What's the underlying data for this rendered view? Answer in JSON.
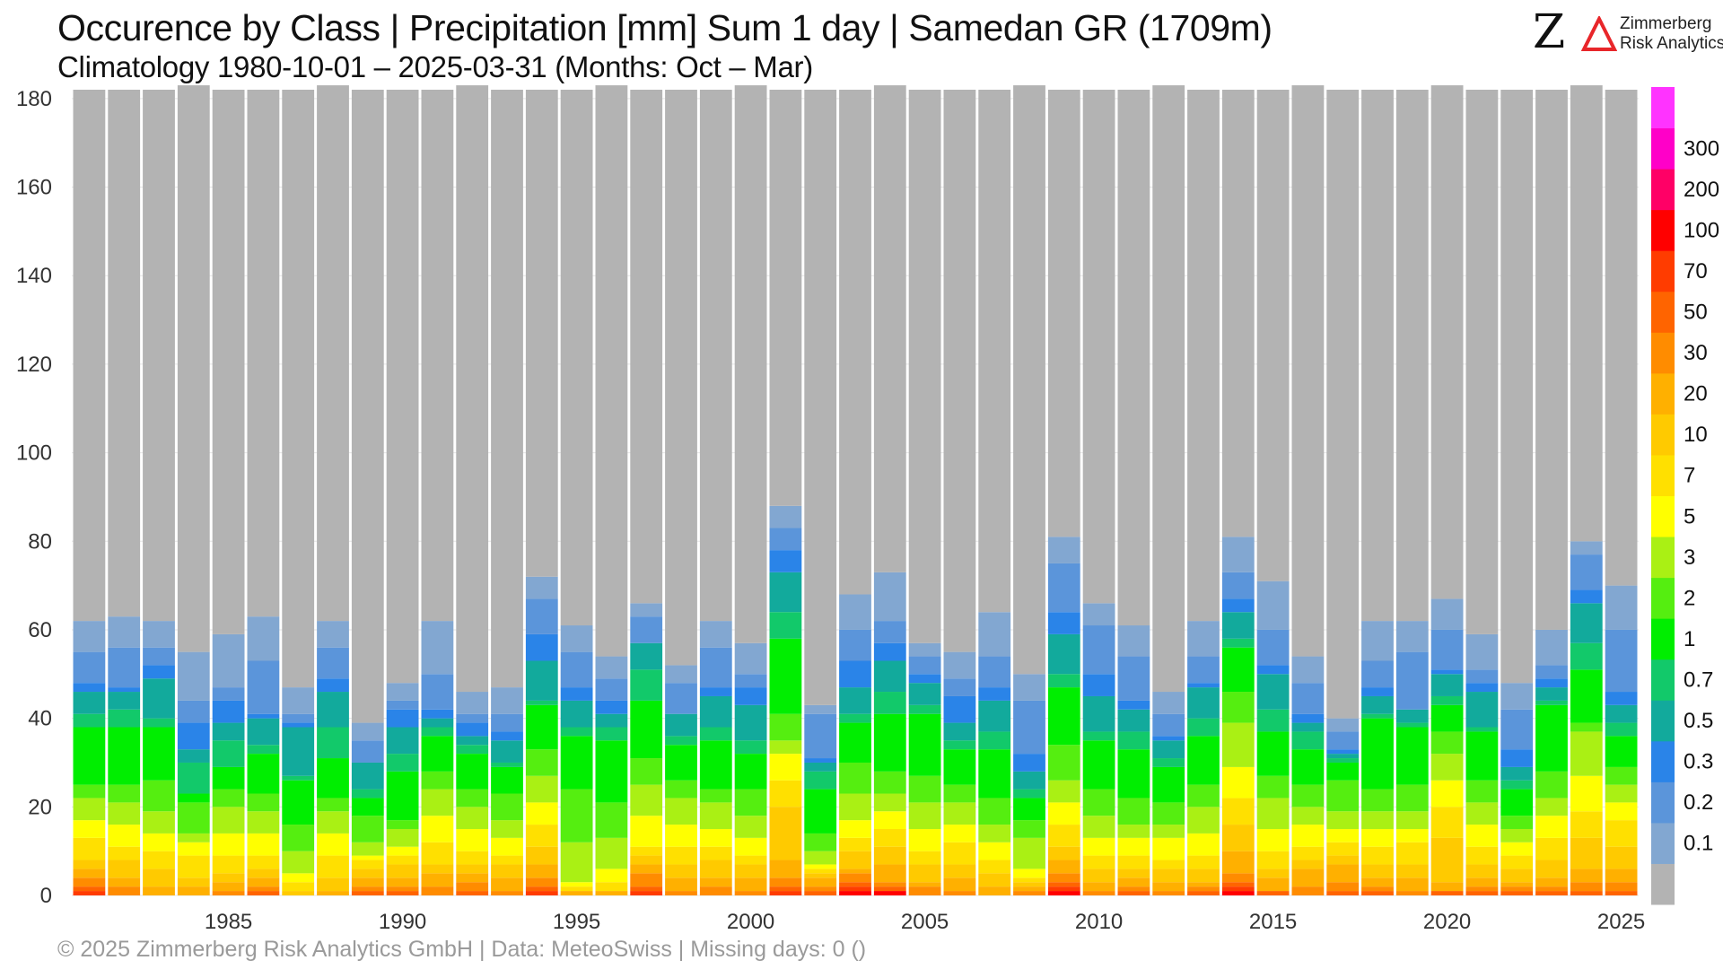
{
  "header": {
    "title": "Occurence by Class | Precipitation [mm] Sum 1 day | Samedan  GR (1709m)",
    "subtitle": "Climatology 1980-10-01 – 2025-03-31 (Months: Oct – Mar)"
  },
  "logo": {
    "mark": "Z",
    "line1": "Zimmerberg",
    "line2": "Risk Analytics",
    "accent_color": "#e8262a"
  },
  "footer": {
    "text": "©  2025 Zimmerberg Risk Analytics GmbH | Data: MeteoSwiss | Missing days: 0 ()"
  },
  "chart_data": {
    "type": "bar",
    "stacked": true,
    "x": [
      1981,
      1982,
      1983,
      1984,
      1985,
      1986,
      1987,
      1988,
      1989,
      1990,
      1991,
      1992,
      1993,
      1994,
      1995,
      1996,
      1997,
      1998,
      1999,
      2000,
      2001,
      2002,
      2003,
      2004,
      2005,
      2006,
      2007,
      2008,
      2009,
      2010,
      2011,
      2012,
      2013,
      2014,
      2015,
      2016,
      2017,
      2018,
      2019,
      2020,
      2021,
      2022,
      2023,
      2024,
      2025
    ],
    "x_ticks": [
      1985,
      1990,
      1995,
      2000,
      2005,
      2010,
      2015,
      2020,
      2025
    ],
    "ylim": [
      0,
      182
    ],
    "y_ticks": [
      0,
      20,
      40,
      60,
      80,
      100,
      120,
      140,
      160,
      180
    ],
    "grid": true,
    "legend_position": "right colorbar",
    "classes": [
      "0.1",
      "0.2",
      "0.3",
      "0.5",
      "0.7",
      "1",
      "2",
      "3",
      "5",
      "7",
      "10",
      "20",
      "30",
      "50",
      "70",
      "100",
      "200",
      "300"
    ],
    "colors": [
      "#b3b3b3",
      "#82a7d1",
      "#5b95da",
      "#2a84e8",
      "#12aa9c",
      "#12c96a",
      "#00ee00",
      "#55ee10",
      "#aaf014",
      "#ffff00",
      "#ffe000",
      "#ffca00",
      "#ffb000",
      "#ff8c00",
      "#ff6400",
      "#ff3c00",
      "#ff0000",
      "#ff0066",
      "#ff00c8",
      "#ff33ff"
    ],
    "totals": [
      182,
      182,
      182,
      183,
      182,
      182,
      182,
      183,
      182,
      182,
      182,
      183,
      182,
      182,
      182,
      183,
      182,
      182,
      182,
      183,
      182,
      182,
      182,
      183,
      182,
      182,
      182,
      183,
      182,
      182,
      182,
      183,
      182,
      182,
      182,
      183,
      182,
      182,
      182,
      183,
      182,
      182,
      182,
      183,
      182
    ],
    "counts": [
      [
        7,
        7,
        2,
        5,
        3,
        13,
        3,
        5,
        4,
        5,
        2,
        2,
        2,
        1,
        1,
        0,
        0,
        0
      ],
      [
        7,
        9,
        1,
        4,
        4,
        13,
        4,
        5,
        5,
        3,
        4,
        2,
        2,
        0,
        0,
        0,
        0,
        0
      ],
      [
        6,
        4,
        3,
        9,
        2,
        12,
        7,
        5,
        4,
        4,
        4,
        2,
        0,
        0,
        0,
        0,
        0,
        0
      ],
      [
        11,
        5,
        6,
        3,
        7,
        2,
        7,
        2,
        3,
        5,
        2,
        2,
        0,
        0,
        0,
        0,
        0,
        0
      ],
      [
        12,
        3,
        5,
        4,
        6,
        5,
        4,
        6,
        5,
        4,
        2,
        2,
        1,
        0,
        0,
        0,
        0,
        0
      ],
      [
        10,
        12,
        1,
        6,
        2,
        9,
        4,
        5,
        5,
        3,
        2,
        2,
        1,
        1,
        0,
        0,
        0,
        0
      ],
      [
        6,
        2,
        1,
        11,
        1,
        10,
        6,
        5,
        2,
        2,
        1,
        0,
        0,
        0,
        0,
        0,
        0,
        0
      ],
      [
        6,
        7,
        3,
        8,
        7,
        9,
        3,
        5,
        5,
        5,
        3,
        1,
        0,
        0,
        0,
        0,
        0,
        0
      ],
      [
        4,
        5,
        0,
        6,
        2,
        4,
        6,
        3,
        1,
        2,
        2,
        2,
        1,
        1,
        0,
        0,
        0,
        0
      ],
      [
        4,
        2,
        4,
        6,
        4,
        11,
        2,
        4,
        2,
        2,
        3,
        2,
        1,
        1,
        0,
        0,
        0,
        0
      ],
      [
        12,
        8,
        2,
        2,
        2,
        8,
        4,
        6,
        6,
        5,
        2,
        3,
        2,
        0,
        0,
        0,
        0,
        0
      ],
      [
        5,
        2,
        3,
        2,
        2,
        8,
        4,
        5,
        5,
        3,
        2,
        2,
        2,
        1,
        0,
        0,
        0,
        0
      ],
      [
        6,
        4,
        2,
        5,
        1,
        6,
        6,
        4,
        4,
        2,
        3,
        3,
        1,
        0,
        0,
        0,
        0,
        0
      ],
      [
        5,
        8,
        6,
        9,
        1,
        10,
        6,
        6,
        5,
        5,
        4,
        3,
        2,
        1,
        1,
        0,
        0,
        0
      ],
      [
        6,
        8,
        3,
        6,
        2,
        12,
        12,
        9,
        1,
        1,
        0,
        1,
        0,
        0,
        0,
        0,
        0,
        0
      ],
      [
        5,
        5,
        3,
        3,
        3,
        14,
        8,
        7,
        3,
        2,
        0,
        1,
        0,
        0,
        0,
        0,
        0,
        0
      ],
      [
        3,
        6,
        0,
        6,
        7,
        13,
        6,
        7,
        7,
        2,
        2,
        2,
        3,
        1,
        1,
        0,
        0,
        0
      ],
      [
        4,
        7,
        0,
        5,
        2,
        8,
        4,
        6,
        5,
        4,
        3,
        3,
        1,
        0,
        0,
        0,
        0,
        0
      ],
      [
        6,
        9,
        2,
        7,
        3,
        11,
        3,
        6,
        4,
        3,
        4,
        2,
        2,
        0,
        0,
        0,
        0,
        0
      ],
      [
        7,
        3,
        4,
        8,
        3,
        8,
        6,
        5,
        4,
        2,
        3,
        3,
        1,
        0,
        0,
        0,
        0,
        0
      ],
      [
        5,
        5,
        5,
        9,
        6,
        17,
        6,
        3,
        6,
        6,
        12,
        4,
        2,
        1,
        1,
        0,
        0,
        0
      ],
      [
        2,
        10,
        1,
        2,
        4,
        10,
        4,
        3,
        1,
        1,
        1,
        2,
        1,
        1,
        0,
        0,
        0,
        0
      ],
      [
        8,
        7,
        6,
        6,
        2,
        9,
        7,
        6,
        4,
        3,
        4,
        1,
        2,
        1,
        1,
        1,
        0,
        0
      ],
      [
        11,
        5,
        4,
        7,
        5,
        13,
        5,
        4,
        4,
        4,
        4,
        4,
        1,
        1,
        0,
        1,
        0,
        0
      ],
      [
        3,
        4,
        2,
        5,
        2,
        14,
        6,
        6,
        5,
        3,
        4,
        1,
        2,
        0,
        0,
        0,
        0,
        0
      ],
      [
        6,
        4,
        6,
        4,
        2,
        8,
        4,
        5,
        4,
        5,
        3,
        3,
        1,
        0,
        0,
        0,
        0,
        0
      ],
      [
        10,
        7,
        3,
        7,
        4,
        11,
        6,
        4,
        4,
        3,
        3,
        2,
        0,
        0,
        0,
        0,
        0,
        0
      ],
      [
        6,
        12,
        4,
        4,
        2,
        5,
        4,
        7,
        2,
        1,
        1,
        1,
        1,
        0,
        0,
        0,
        0,
        0
      ],
      [
        6,
        11,
        5,
        9,
        3,
        13,
        8,
        5,
        5,
        5,
        3,
        3,
        2,
        1,
        1,
        1,
        0,
        0
      ],
      [
        5,
        11,
        5,
        8,
        2,
        11,
        6,
        5,
        4,
        3,
        3,
        2,
        1,
        0,
        0,
        0,
        0,
        0
      ],
      [
        7,
        10,
        2,
        5,
        4,
        11,
        6,
        3,
        4,
        3,
        2,
        2,
        1,
        1,
        0,
        0,
        0,
        0
      ],
      [
        5,
        5,
        1,
        4,
        2,
        8,
        5,
        3,
        5,
        2,
        3,
        2,
        1,
        0,
        0,
        0,
        0,
        0
      ],
      [
        8,
        6,
        1,
        7,
        4,
        11,
        5,
        6,
        5,
        3,
        3,
        1,
        1,
        1,
        0,
        0,
        0,
        0
      ],
      [
        8,
        6,
        3,
        6,
        2,
        10,
        7,
        10,
        7,
        6,
        6,
        5,
        2,
        1,
        1,
        1,
        0,
        0
      ],
      [
        11,
        8,
        2,
        8,
        5,
        10,
        5,
        7,
        5,
        4,
        2,
        3,
        0,
        1,
        0,
        0,
        0,
        0
      ],
      [
        6,
        7,
        2,
        2,
        4,
        8,
        5,
        4,
        5,
        3,
        2,
        4,
        2,
        0,
        0,
        0,
        0,
        0
      ],
      [
        3,
        4,
        1,
        1,
        1,
        4,
        7,
        4,
        3,
        3,
        2,
        4,
        2,
        1,
        0,
        0,
        0,
        0
      ],
      [
        9,
        6,
        2,
        4,
        1,
        16,
        5,
        4,
        4,
        4,
        3,
        2,
        1,
        1,
        0,
        0,
        0,
        0
      ],
      [
        7,
        13,
        0,
        3,
        1,
        13,
        6,
        4,
        3,
        5,
        3,
        3,
        1,
        0,
        0,
        0,
        0,
        0
      ],
      [
        7,
        9,
        1,
        5,
        2,
        6,
        5,
        6,
        6,
        7,
        10,
        2,
        0,
        1,
        0,
        0,
        0,
        0
      ],
      [
        8,
        3,
        2,
        8,
        1,
        11,
        5,
        5,
        5,
        4,
        3,
        2,
        1,
        1,
        0,
        0,
        0,
        0
      ],
      [
        6,
        9,
        4,
        3,
        2,
        6,
        3,
        3,
        3,
        3,
        3,
        1,
        1,
        1,
        0,
        0,
        0,
        0
      ],
      [
        8,
        3,
        2,
        3,
        1,
        15,
        6,
        4,
        5,
        5,
        4,
        2,
        1,
        1,
        0,
        0,
        0,
        0
      ],
      [
        3,
        8,
        3,
        9,
        6,
        12,
        2,
        10,
        8,
        6,
        7,
        3,
        2,
        1,
        0,
        0,
        0,
        0
      ],
      [
        10,
        14,
        3,
        4,
        3,
        7,
        4,
        4,
        4,
        6,
        5,
        3,
        2,
        1,
        0,
        0,
        0,
        0
      ]
    ]
  }
}
